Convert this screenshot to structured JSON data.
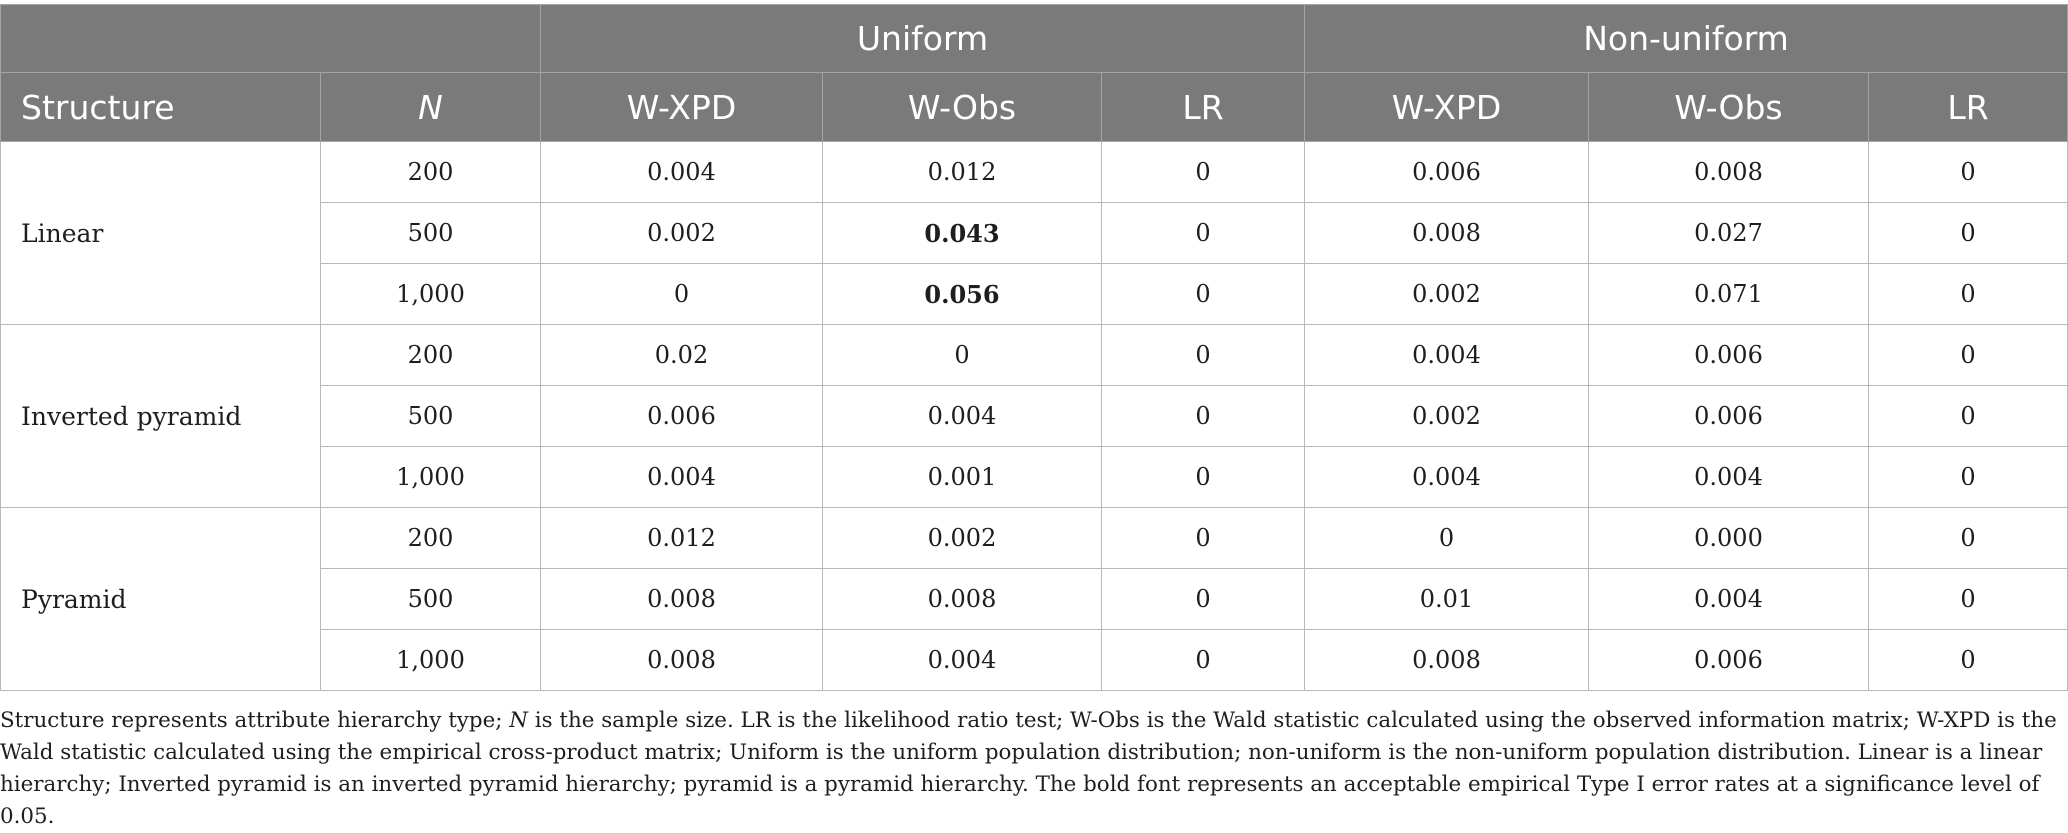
{
  "table": {
    "group_headers": {
      "uniform": "Uniform",
      "nonuniform": "Non-uniform"
    },
    "column_headers": {
      "structure": "Structure",
      "n": "N",
      "u_wxpd": "W-XPD",
      "u_wobs": "W-Obs",
      "u_lr": "LR",
      "nu_wxpd": "W-XPD",
      "nu_wobs": "W-Obs",
      "nu_lr": "LR"
    },
    "groups": [
      {
        "structure": "Linear",
        "rows": [
          {
            "n": "200",
            "u_wxpd": "0.004",
            "u_wobs": "0.012",
            "u_lr": "0",
            "nu_wxpd": "0.006",
            "nu_wobs": "0.008",
            "nu_lr": "0"
          },
          {
            "n": "500",
            "u_wxpd": "0.002",
            "u_wobs": "0.043",
            "u_lr": "0",
            "nu_wxpd": "0.008",
            "nu_wobs": "0.027",
            "nu_lr": "0"
          },
          {
            "n": "1,000",
            "u_wxpd": "0",
            "u_wobs": "0.056",
            "u_lr": "0",
            "nu_wxpd": "0.002",
            "nu_wobs": "0.071",
            "nu_lr": "0"
          }
        ]
      },
      {
        "structure": "Inverted pyramid",
        "rows": [
          {
            "n": "200",
            "u_wxpd": "0.02",
            "u_wobs": "0",
            "u_lr": "0",
            "nu_wxpd": "0.004",
            "nu_wobs": "0.006",
            "nu_lr": "0"
          },
          {
            "n": "500",
            "u_wxpd": "0.006",
            "u_wobs": "0.004",
            "u_lr": "0",
            "nu_wxpd": "0.002",
            "nu_wobs": "0.006",
            "nu_lr": "0"
          },
          {
            "n": "1,000",
            "u_wxpd": "0.004",
            "u_wobs": "0.001",
            "u_lr": "0",
            "nu_wxpd": "0.004",
            "nu_wobs": "0.004",
            "nu_lr": "0"
          }
        ]
      },
      {
        "structure": "Pyramid",
        "rows": [
          {
            "n": "200",
            "u_wxpd": "0.012",
            "u_wobs": "0.002",
            "u_lr": "0",
            "nu_wxpd": "0",
            "nu_wobs": "0.000",
            "nu_lr": "0"
          },
          {
            "n": "500",
            "u_wxpd": "0.008",
            "u_wobs": "0.008",
            "u_lr": "0",
            "nu_wxpd": "0.01",
            "nu_wobs": "0.004",
            "nu_lr": "0"
          },
          {
            "n": "1,000",
            "u_wxpd": "0.008",
            "u_wobs": "0.004",
            "u_lr": "0",
            "nu_wxpd": "0.008",
            "nu_wobs": "0.006",
            "nu_lr": "0"
          }
        ]
      }
    ],
    "bold_cells": [
      "0.043 (Linear, N=500, Uniform W-Obs)",
      "0.056 (Linear, N=1,000, Uniform W-Obs)"
    ]
  },
  "footnote": {
    "part1": "Structure represents attribute hierarchy type; ",
    "part2_italic": "N",
    "part3": " is the sample size. LR is the likelihood ratio test; W-Obs is the Wald statistic calculated using the observed information matrix; W-XPD is the Wald statistic calculated using the empirical cross-product matrix; Uniform is the uniform population distribution; non-uniform is the non-uniform population distribution. Linear is a linear hierarchy; Inverted pyramid is an inverted pyramid hierarchy; pyramid is a pyramid hierarchy. The bold font represents an acceptable empirical Type I error rates at a significance level of 0.05."
  },
  "colors": {
    "header_bg": "#7a7a7a",
    "header_text": "#ffffff",
    "grid": "#b9b9b9",
    "body_text": "#1e1e1e"
  }
}
